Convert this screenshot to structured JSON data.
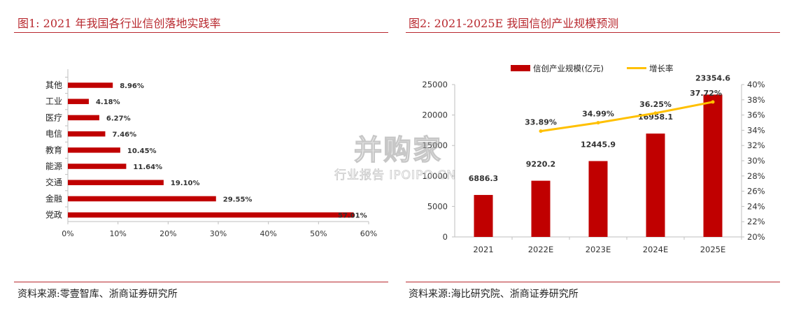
{
  "left": {
    "title": "图1:   2021 年我国各行业信创落地实践率",
    "source": "资料来源:零壹智库、浙商证券研究所"
  },
  "right": {
    "title": "图2:   2021-2025E 我国信创产业规模预测",
    "source": "资料来源:海比研究院、浙商证券研究所"
  },
  "watermark": {
    "main": "并购家",
    "sub": "行业报告 IPOIPO.CN"
  },
  "colors": {
    "bar": "#c00000",
    "line": "#ffc000",
    "rule": "#b8282e"
  },
  "chart_data": [
    {
      "type": "bar",
      "orientation": "horizontal",
      "categories": [
        "其他",
        "工业",
        "医疗",
        "电信",
        "教育",
        "能源",
        "交通",
        "金融",
        "党政"
      ],
      "values": [
        8.96,
        4.18,
        6.27,
        7.46,
        10.45,
        11.64,
        19.1,
        29.55,
        57.01
      ],
      "value_labels": [
        "8.96%",
        "4.18%",
        "6.27%",
        "7.46%",
        "10.45%",
        "11.64%",
        "19.10%",
        "29.55%",
        "57.01%"
      ],
      "xlim": [
        0,
        60
      ],
      "x_ticks": [
        "0%",
        "10%",
        "20%",
        "30%",
        "40%",
        "50%",
        "60%"
      ],
      "grid": false
    },
    {
      "type": "bar+line",
      "categories": [
        "2021",
        "2022E",
        "2023E",
        "2024E",
        "2025E"
      ],
      "series": [
        {
          "name": "信创产业规模(亿元)",
          "type": "bar",
          "axis": "left",
          "values": [
            6886.3,
            9220.2,
            12445.9,
            16958.1,
            23354.6
          ],
          "value_labels": [
            "6886.3",
            "9220.2",
            "12445.9",
            "16958.1",
            "23354.6"
          ]
        },
        {
          "name": "增长率",
          "type": "line",
          "axis": "right",
          "values": [
            null,
            33.89,
            34.99,
            36.25,
            37.72
          ],
          "value_labels": [
            "",
            "33.89%",
            "34.99%",
            "36.25%",
            "37.72%"
          ]
        }
      ],
      "y_left": {
        "lim": [
          0,
          25000
        ],
        "ticks": [
          "0",
          "5000",
          "10000",
          "15000",
          "20000",
          "25000"
        ]
      },
      "y_right": {
        "lim": [
          20,
          40
        ],
        "ticks": [
          "20%",
          "22%",
          "24%",
          "26%",
          "28%",
          "30%",
          "32%",
          "34%",
          "36%",
          "38%",
          "40%"
        ]
      },
      "legend": "top",
      "grid": false
    }
  ]
}
